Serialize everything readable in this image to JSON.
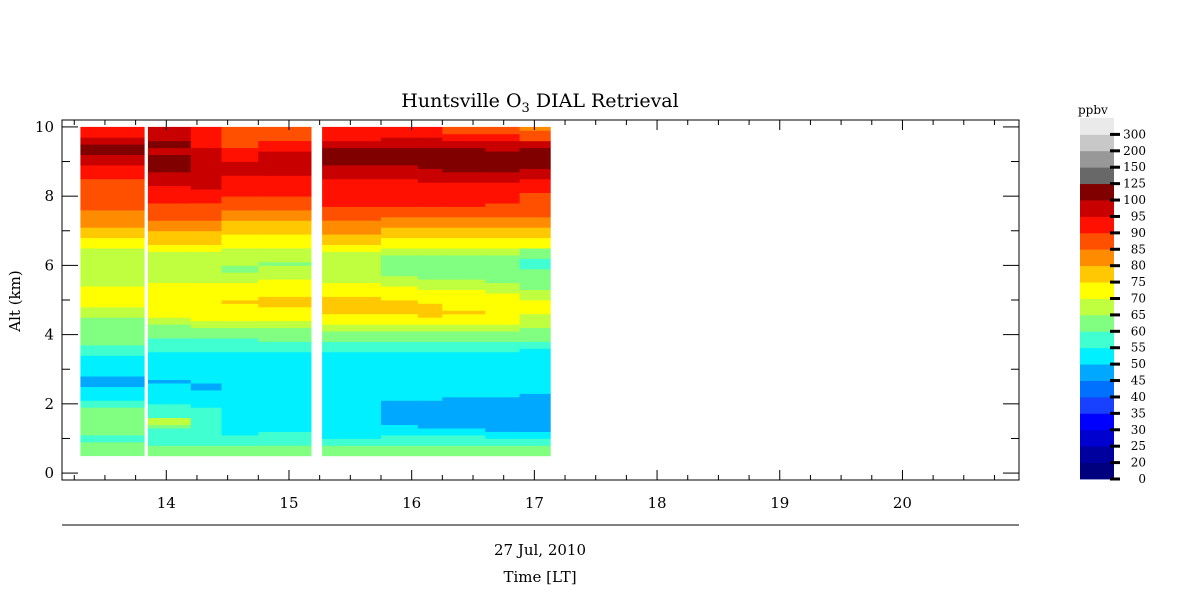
{
  "chart_data": {
    "type": "heatmap",
    "title": "Huntsville O",
    "title_sub": "3",
    "title_rest": " DIAL Retrieval",
    "xlabel": "Time [LT]",
    "date_label": "27 Jul, 2010",
    "ylabel": "Alt (km)",
    "xlim": [
      13.15,
      20.95
    ],
    "ylim": [
      -0.2,
      10.2
    ],
    "x_ticks": [
      14,
      15,
      16,
      17,
      18,
      19,
      20
    ],
    "y_ticks": [
      0,
      2,
      4,
      6,
      8,
      10
    ],
    "colorbar": {
      "unit": "ppbv",
      "levels": [
        0,
        20,
        25,
        30,
        35,
        40,
        45,
        50,
        55,
        60,
        65,
        70,
        75,
        80,
        85,
        90,
        95,
        100,
        125,
        150,
        200,
        300
      ],
      "colors": [
        "#00007f",
        "#00009f",
        "#0000cf",
        "#0000ff",
        "#1740ff",
        "#0070ff",
        "#00a8ff",
        "#00f0ff",
        "#40ffd0",
        "#80ff80",
        "#c0ff40",
        "#ffff00",
        "#ffc800",
        "#ff8c00",
        "#ff5000",
        "#ff1000",
        "#c80000",
        "#800000",
        "#686868",
        "#989898",
        "#c8c8c8",
        "#eaeaea"
      ]
    },
    "profiles": [
      {
        "time": [
          13.3,
          13.82
        ],
        "base": 0.5,
        "values": [
          [
            0.9,
            60
          ],
          [
            1.1,
            55
          ],
          [
            1.4,
            60
          ],
          [
            1.9,
            60
          ],
          [
            2.1,
            55
          ],
          [
            2.3,
            50
          ],
          [
            2.5,
            50
          ],
          [
            2.8,
            45
          ],
          [
            3.2,
            50
          ],
          [
            3.4,
            50
          ],
          [
            3.7,
            55
          ],
          [
            4.0,
            60
          ],
          [
            4.5,
            60
          ],
          [
            4.8,
            65
          ],
          [
            5.0,
            70
          ],
          [
            5.4,
            70
          ],
          [
            5.8,
            65
          ],
          [
            6.2,
            65
          ],
          [
            6.5,
            65
          ],
          [
            6.8,
            70
          ],
          [
            7.1,
            75
          ],
          [
            7.6,
            80
          ],
          [
            8.5,
            85
          ],
          [
            8.9,
            90
          ],
          [
            9.2,
            95
          ],
          [
            9.5,
            100
          ],
          [
            9.7,
            95
          ],
          [
            9.9,
            90
          ],
          [
            10.0,
            90
          ]
        ]
      },
      {
        "time": [
          13.85,
          14.2
        ],
        "base": 0.5,
        "values": [
          [
            0.8,
            60
          ],
          [
            1.3,
            55
          ],
          [
            1.4,
            60
          ],
          [
            1.6,
            65
          ],
          [
            2.0,
            55
          ],
          [
            2.3,
            50
          ],
          [
            2.6,
            50
          ],
          [
            2.7,
            45
          ],
          [
            3.5,
            50
          ],
          [
            3.9,
            55
          ],
          [
            4.3,
            60
          ],
          [
            4.5,
            65
          ],
          [
            5.2,
            70
          ],
          [
            5.5,
            70
          ],
          [
            5.9,
            65
          ],
          [
            6.4,
            65
          ],
          [
            6.6,
            70
          ],
          [
            7.0,
            75
          ],
          [
            7.3,
            80
          ],
          [
            7.8,
            85
          ],
          [
            8.3,
            90
          ],
          [
            8.7,
            95
          ],
          [
            9.2,
            100
          ],
          [
            9.4,
            95
          ],
          [
            9.6,
            100
          ],
          [
            10.0,
            95
          ]
        ]
      },
      {
        "time": [
          14.2,
          14.45
        ],
        "base": 0.5,
        "values": [
          [
            0.8,
            60
          ],
          [
            1.3,
            55
          ],
          [
            1.9,
            55
          ],
          [
            2.0,
            50
          ],
          [
            2.4,
            50
          ],
          [
            2.6,
            45
          ],
          [
            3.5,
            50
          ],
          [
            3.9,
            55
          ],
          [
            4.2,
            60
          ],
          [
            4.4,
            65
          ],
          [
            5.1,
            70
          ],
          [
            5.5,
            70
          ],
          [
            5.8,
            65
          ],
          [
            6.4,
            65
          ],
          [
            6.6,
            70
          ],
          [
            7.0,
            75
          ],
          [
            7.3,
            80
          ],
          [
            7.8,
            85
          ],
          [
            8.2,
            90
          ],
          [
            8.5,
            95
          ],
          [
            9.4,
            95
          ],
          [
            9.6,
            90
          ],
          [
            10.0,
            90
          ]
        ]
      },
      {
        "time": [
          14.45,
          14.75
        ],
        "base": 0.5,
        "values": [
          [
            0.8,
            60
          ],
          [
            1.1,
            55
          ],
          [
            1.4,
            50
          ],
          [
            3.5,
            50
          ],
          [
            3.9,
            55
          ],
          [
            4.2,
            60
          ],
          [
            4.4,
            65
          ],
          [
            4.9,
            70
          ],
          [
            5.0,
            75
          ],
          [
            5.5,
            70
          ],
          [
            5.8,
            65
          ],
          [
            6.0,
            60
          ],
          [
            6.5,
            65
          ],
          [
            6.9,
            70
          ],
          [
            7.3,
            75
          ],
          [
            7.6,
            80
          ],
          [
            8.0,
            85
          ],
          [
            8.6,
            90
          ],
          [
            9.0,
            95
          ],
          [
            9.4,
            90
          ],
          [
            10.0,
            85
          ]
        ]
      },
      {
        "time": [
          14.75,
          15.18
        ],
        "base": 0.5,
        "values": [
          [
            0.8,
            60
          ],
          [
            1.2,
            55
          ],
          [
            1.3,
            50
          ],
          [
            3.5,
            50
          ],
          [
            3.8,
            55
          ],
          [
            4.2,
            60
          ],
          [
            4.4,
            65
          ],
          [
            4.8,
            70
          ],
          [
            5.1,
            75
          ],
          [
            5.6,
            70
          ],
          [
            6.0,
            65
          ],
          [
            6.1,
            60
          ],
          [
            6.5,
            65
          ],
          [
            6.9,
            70
          ],
          [
            7.3,
            75
          ],
          [
            7.6,
            80
          ],
          [
            8.0,
            85
          ],
          [
            8.6,
            90
          ],
          [
            9.3,
            95
          ],
          [
            9.6,
            90
          ],
          [
            10.0,
            85
          ]
        ]
      },
      {
        "time": [
          15.27,
          15.75
        ],
        "base": 0.5,
        "values": [
          [
            0.8,
            60
          ],
          [
            1.0,
            55
          ],
          [
            1.1,
            50
          ],
          [
            3.5,
            50
          ],
          [
            3.8,
            55
          ],
          [
            4.1,
            60
          ],
          [
            4.3,
            65
          ],
          [
            4.6,
            70
          ],
          [
            4.8,
            75
          ],
          [
            5.1,
            75
          ],
          [
            5.5,
            70
          ],
          [
            5.8,
            65
          ],
          [
            6.4,
            65
          ],
          [
            6.6,
            70
          ],
          [
            6.9,
            75
          ],
          [
            7.3,
            80
          ],
          [
            7.7,
            85
          ],
          [
            8.5,
            90
          ],
          [
            8.9,
            95
          ],
          [
            9.4,
            100
          ],
          [
            9.6,
            95
          ],
          [
            9.7,
            90
          ],
          [
            10.0,
            90
          ]
        ]
      },
      {
        "time": [
          15.75,
          16.05
        ],
        "base": 0.5,
        "values": [
          [
            0.8,
            60
          ],
          [
            1.1,
            55
          ],
          [
            1.4,
            50
          ],
          [
            2.1,
            45
          ],
          [
            3.5,
            50
          ],
          [
            3.8,
            55
          ],
          [
            4.1,
            60
          ],
          [
            4.3,
            65
          ],
          [
            4.6,
            70
          ],
          [
            4.8,
            75
          ],
          [
            5.0,
            75
          ],
          [
            5.4,
            70
          ],
          [
            5.7,
            65
          ],
          [
            6.3,
            60
          ],
          [
            6.5,
            65
          ],
          [
            6.8,
            70
          ],
          [
            7.1,
            75
          ],
          [
            7.4,
            80
          ],
          [
            7.7,
            85
          ],
          [
            8.5,
            90
          ],
          [
            8.9,
            95
          ],
          [
            9.4,
            100
          ],
          [
            9.7,
            95
          ],
          [
            10.0,
            90
          ]
        ]
      },
      {
        "time": [
          16.05,
          16.25
        ],
        "base": 0.5,
        "values": [
          [
            0.8,
            60
          ],
          [
            1.1,
            55
          ],
          [
            1.3,
            50
          ],
          [
            2.1,
            45
          ],
          [
            3.5,
            50
          ],
          [
            3.8,
            55
          ],
          [
            4.1,
            60
          ],
          [
            4.3,
            65
          ],
          [
            4.5,
            70
          ],
          [
            4.9,
            75
          ],
          [
            5.3,
            70
          ],
          [
            5.6,
            65
          ],
          [
            6.3,
            60
          ],
          [
            6.5,
            65
          ],
          [
            6.8,
            70
          ],
          [
            7.1,
            75
          ],
          [
            7.4,
            80
          ],
          [
            7.7,
            85
          ],
          [
            8.4,
            90
          ],
          [
            8.8,
            95
          ],
          [
            9.4,
            100
          ],
          [
            9.7,
            95
          ],
          [
            10.0,
            90
          ]
        ]
      },
      {
        "time": [
          16.25,
          16.6
        ],
        "base": 0.5,
        "values": [
          [
            0.8,
            60
          ],
          [
            1.1,
            55
          ],
          [
            1.3,
            50
          ],
          [
            2.2,
            45
          ],
          [
            3.5,
            50
          ],
          [
            3.8,
            55
          ],
          [
            4.1,
            60
          ],
          [
            4.3,
            65
          ],
          [
            4.6,
            70
          ],
          [
            4.7,
            75
          ],
          [
            4.8,
            70
          ],
          [
            5.3,
            70
          ],
          [
            5.6,
            65
          ],
          [
            6.3,
            60
          ],
          [
            6.5,
            65
          ],
          [
            6.8,
            70
          ],
          [
            7.1,
            75
          ],
          [
            7.4,
            80
          ],
          [
            7.7,
            85
          ],
          [
            8.4,
            90
          ],
          [
            8.7,
            95
          ],
          [
            9.4,
            100
          ],
          [
            9.6,
            95
          ],
          [
            9.8,
            90
          ],
          [
            10.0,
            85
          ]
        ]
      },
      {
        "time": [
          16.6,
          16.88
        ],
        "base": 0.5,
        "values": [
          [
            0.8,
            60
          ],
          [
            1.0,
            55
          ],
          [
            1.2,
            50
          ],
          [
            2.2,
            45
          ],
          [
            3.5,
            50
          ],
          [
            3.8,
            55
          ],
          [
            4.1,
            60
          ],
          [
            4.3,
            65
          ],
          [
            4.8,
            70
          ],
          [
            5.2,
            70
          ],
          [
            5.5,
            65
          ],
          [
            6.3,
            60
          ],
          [
            6.5,
            65
          ],
          [
            6.8,
            70
          ],
          [
            7.1,
            75
          ],
          [
            7.4,
            80
          ],
          [
            7.8,
            85
          ],
          [
            8.4,
            90
          ],
          [
            8.7,
            95
          ],
          [
            9.3,
            100
          ],
          [
            9.6,
            95
          ],
          [
            9.8,
            90
          ],
          [
            10.0,
            85
          ]
        ]
      },
      {
        "time": [
          16.88,
          17.13
        ],
        "base": 0.5,
        "values": [
          [
            0.8,
            60
          ],
          [
            1.0,
            55
          ],
          [
            1.2,
            50
          ],
          [
            2.3,
            45
          ],
          [
            3.6,
            50
          ],
          [
            3.8,
            55
          ],
          [
            4.2,
            60
          ],
          [
            4.6,
            65
          ],
          [
            5.0,
            70
          ],
          [
            5.3,
            65
          ],
          [
            5.9,
            60
          ],
          [
            6.2,
            55
          ],
          [
            6.5,
            60
          ],
          [
            6.8,
            70
          ],
          [
            7.1,
            75
          ],
          [
            7.4,
            80
          ],
          [
            8.1,
            85
          ],
          [
            8.5,
            90
          ],
          [
            8.8,
            95
          ],
          [
            9.4,
            100
          ],
          [
            9.6,
            95
          ],
          [
            9.9,
            85
          ],
          [
            10.0,
            80
          ]
        ]
      }
    ]
  }
}
